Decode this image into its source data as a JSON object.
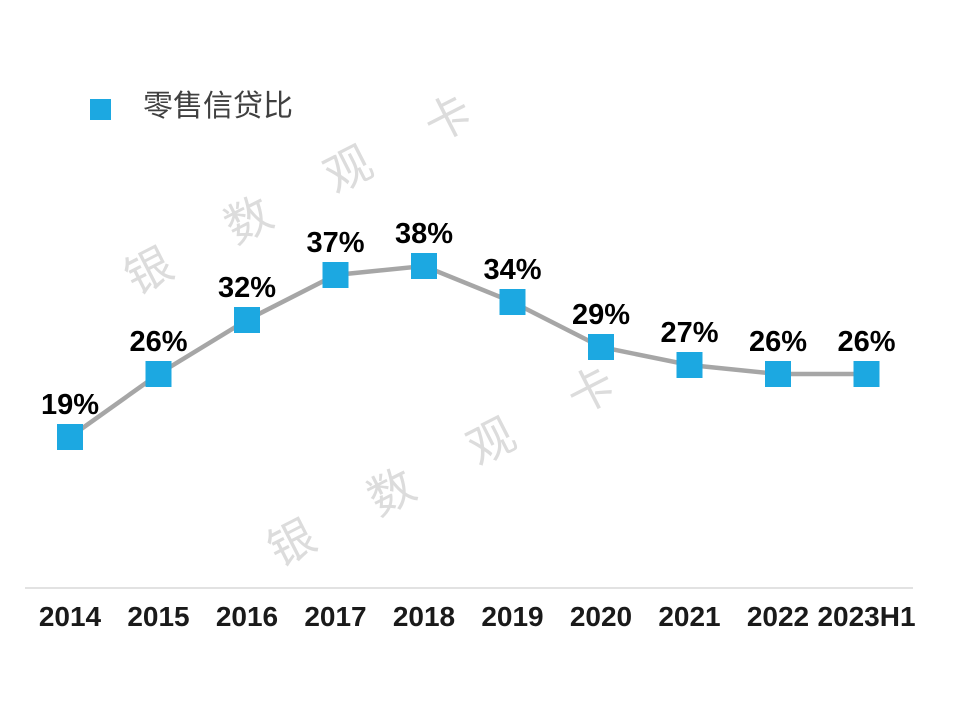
{
  "page": {
    "background_color": "#ffffff"
  },
  "watermark": {
    "text": "银数观卡",
    "color": "#dcdcdc"
  },
  "legend": {
    "label": "零售信贷比",
    "swatch_color": "#1CA8E1"
  },
  "chart_data": {
    "type": "line",
    "categories": [
      "2014",
      "2015",
      "2016",
      "2017",
      "2018",
      "2019",
      "2020",
      "2021",
      "2022",
      "2023H1"
    ],
    "series": [
      {
        "name": "零售信贷比",
        "values": [
          19,
          26,
          32,
          37,
          38,
          34,
          29,
          27,
          26,
          26
        ]
      }
    ],
    "data_labels": [
      "19%",
      "26%",
      "32%",
      "37%",
      "38%",
      "34%",
      "29%",
      "27%",
      "26%",
      "26%"
    ],
    "title": "",
    "xlabel": "",
    "ylabel": "",
    "ylim": [
      15,
      42
    ],
    "grid": false,
    "legend_position": "top-left",
    "marker_shape": "square",
    "marker_color": "#1CA8E1",
    "line_color": "#A6A6A6",
    "axis_line_color": "#D9D9D9",
    "data_label_color": "#000000",
    "tick_label_color": "#1a1a1a"
  }
}
